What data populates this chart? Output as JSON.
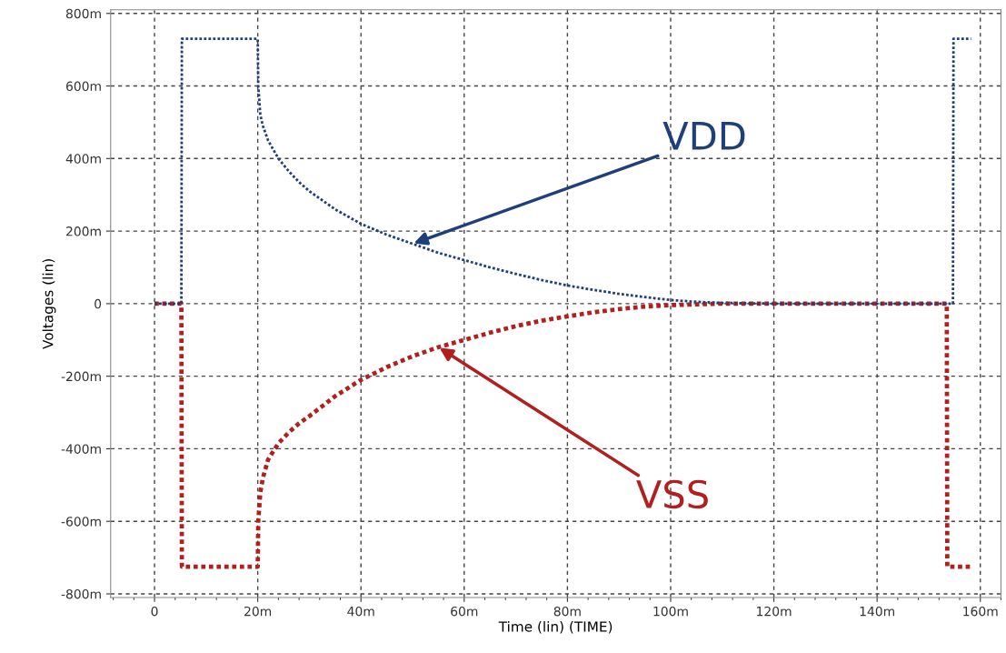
{
  "chart_data": {
    "type": "line",
    "xlabel": "Time (lin) (TIME)",
    "ylabel": "Voltages (lin)",
    "xlim": [
      -8.5,
      164
    ],
    "ylim": [
      -810,
      810
    ],
    "xticks": [
      0,
      {
        "value": 20,
        "label": "20m"
      },
      {
        "value": 40,
        "label": "40m"
      },
      {
        "value": 60,
        "label": "60m"
      },
      {
        "value": 80,
        "label": "80m"
      },
      {
        "value": 100,
        "label": "100m"
      },
      {
        "value": 120,
        "label": "120m"
      },
      {
        "value": 140,
        "label": "140m"
      },
      {
        "value": 160,
        "label": "160m"
      }
    ],
    "yticks": [
      {
        "value": 800,
        "label": "800m"
      },
      {
        "value": 600,
        "label": "600m"
      },
      {
        "value": 400,
        "label": "400m"
      },
      {
        "value": 200,
        "label": "200m"
      },
      0,
      {
        "value": -200,
        "label": "-200m"
      },
      {
        "value": -400,
        "label": "-400m"
      },
      {
        "value": -600,
        "label": "-600m"
      },
      {
        "value": -800,
        "label": "-800m"
      }
    ],
    "grid": true,
    "line_style": "dotted",
    "series": [
      {
        "name": "VDD",
        "color": "#1f3f7a",
        "x": [
          0,
          5.2,
          5.3,
          20,
          20.1,
          20.5,
          21,
          22,
          24,
          26,
          28,
          30,
          35,
          40,
          45,
          50,
          55,
          60,
          65,
          70,
          75,
          80,
          85,
          90,
          95,
          100,
          105,
          110,
          120,
          154.7,
          154.8,
          158.2
        ],
        "values": [
          0,
          0,
          730,
          730,
          600,
          520,
          490,
          450,
          400,
          365,
          335,
          310,
          260,
          220,
          190,
          165,
          140,
          120,
          100,
          82,
          65,
          50,
          38,
          27,
          18,
          10,
          5,
          2,
          0,
          0,
          730,
          730
        ]
      },
      {
        "name": "VSS",
        "color": "#b0201e",
        "x": [
          0,
          5.2,
          5.3,
          20,
          20.1,
          20.5,
          21,
          22,
          24,
          26,
          28,
          30,
          35,
          40,
          45,
          50,
          55,
          60,
          65,
          70,
          75,
          80,
          85,
          90,
          95,
          100,
          105,
          110,
          120,
          153.5,
          153.6,
          158.2
        ],
        "values": [
          0,
          0,
          -725,
          -725,
          -600,
          -520,
          -480,
          -430,
          -385,
          -355,
          -330,
          -310,
          -255,
          -210,
          -175,
          -145,
          -120,
          -100,
          -80,
          -62,
          -47,
          -35,
          -24,
          -15,
          -8,
          -4,
          -2,
          0,
          0,
          0,
          -725,
          -725
        ]
      }
    ]
  }
}
